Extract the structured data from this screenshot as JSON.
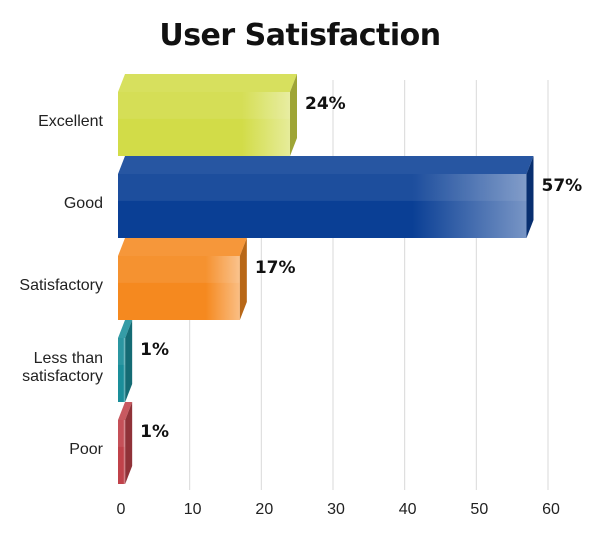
{
  "chart_data": {
    "type": "bar",
    "orientation": "horizontal",
    "title": "User Satisfaction",
    "xlabel": "",
    "ylabel": "",
    "categories": [
      [
        "Excellent"
      ],
      [
        "Good"
      ],
      [
        "Satisfactory"
      ],
      [
        "Less than",
        "satisfactory"
      ],
      [
        "Poor"
      ]
    ],
    "values": [
      24,
      57,
      17,
      1,
      1
    ],
    "data_labels": [
      "24%",
      "57%",
      "17%",
      "1%",
      "1%"
    ],
    "colors": [
      "#d2dc48",
      "#0a3f95",
      "#f5891f",
      "#1a8e9a",
      "#c0424a"
    ],
    "xlim": [
      0,
      60
    ],
    "xticks": [
      0,
      10,
      20,
      30,
      40,
      50,
      60
    ],
    "grid": true,
    "legend": "none",
    "style": "3d"
  }
}
